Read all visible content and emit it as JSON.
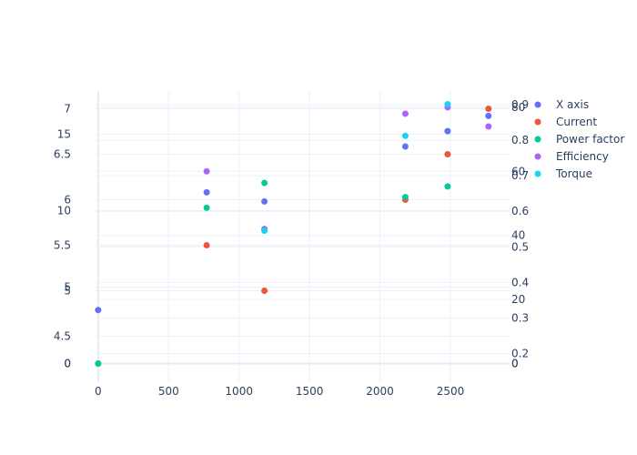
{
  "chart_data": {
    "type": "scatter",
    "x": [
      0,
      770,
      1180,
      2180,
      2480,
      2770
    ],
    "xlim": [
      -180,
      2920
    ],
    "x_ticks": [
      0,
      500,
      1000,
      1500,
      2000,
      2500
    ],
    "series": [
      {
        "name": "X axis",
        "color": "#636efa",
        "axis": "y1",
        "values": [
          3.5,
          11.2,
          10.6,
          14.2,
          15.2,
          16.2
        ]
      },
      {
        "name": "Current",
        "color": "#ef553b",
        "axis": "y2",
        "values": [
          0,
          5.5,
          5.0,
          6.0,
          6.5,
          7.0
        ]
      },
      {
        "name": "Power factor",
        "color": "#00cc96",
        "axis": "y3",
        "values": [
          0,
          0.61,
          0.68,
          0.64,
          0.67,
          null
        ]
      },
      {
        "name": "Efficiency",
        "color": "#ab63fa",
        "axis": "y4",
        "values": [
          null,
          60,
          42,
          78,
          80,
          74
        ]
      },
      {
        "name": "Torque",
        "color": "#19d3f3",
        "axis": "y5",
        "values": [
          null,
          null,
          21,
          36,
          41,
          null
        ]
      }
    ],
    "axes": {
      "y1": {
        "ticks": [
          0,
          5,
          10,
          15
        ]
      },
      "y2": {
        "ticks": [
          4.5,
          5,
          5.5,
          6,
          6.5,
          7
        ]
      },
      "y3": {
        "ticks": [
          0,
          0.2,
          0.3,
          0.4,
          0.5,
          0.6,
          0.7,
          0.8,
          0.9
        ]
      },
      "y4": {
        "ticks": [
          0,
          20,
          40,
          60,
          80
        ]
      },
      "y5": {
        "ticks": []
      }
    },
    "legend_position": "top-right",
    "grid": true
  }
}
